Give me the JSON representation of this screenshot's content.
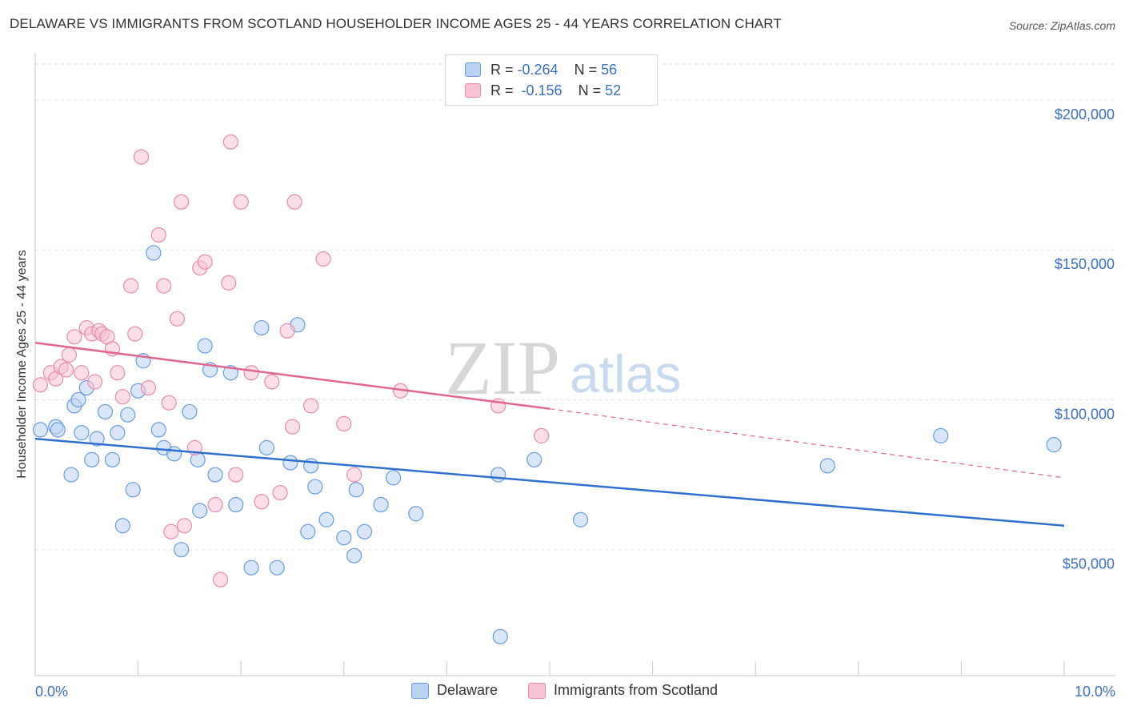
{
  "title": "DELAWARE VS IMMIGRANTS FROM SCOTLAND HOUSEHOLDER INCOME AGES 25 - 44 YEARS CORRELATION CHART",
  "source": "Source: ZipAtlas.com",
  "watermark": {
    "zip": "ZIP",
    "atlas": "atlas"
  },
  "legend": {
    "r_label": "R =",
    "n_label": "N =",
    "rows": [
      {
        "r": "-0.264",
        "n": "56"
      },
      {
        "r": "-0.156",
        "n": "52"
      }
    ]
  },
  "chart_data": {
    "type": "scatter",
    "xlabel": "",
    "ylabel": "Householder Income Ages 25 - 44 years",
    "xlim": [
      0,
      10
    ],
    "ylim": [
      8000,
      212000
    ],
    "x_tick_labels": [
      "0.0%",
      "10.0%"
    ],
    "y_ticks": [
      50000,
      100000,
      150000,
      200000
    ],
    "y_tick_labels": [
      "$50,000",
      "$100,000",
      "$150,000",
      "$200,000"
    ],
    "grid": true,
    "series": [
      {
        "name": "Delaware",
        "color": "#6a9be0",
        "fill": "#b9d1f3",
        "trend": {
          "x0": 0,
          "y0": 87000,
          "x1": 10,
          "y1": 58000
        },
        "points": [
          [
            0.05,
            90000
          ],
          [
            0.2,
            91000
          ],
          [
            0.22,
            90000
          ],
          [
            0.35,
            75000
          ],
          [
            0.38,
            98000
          ],
          [
            0.42,
            100000
          ],
          [
            0.45,
            89000
          ],
          [
            0.5,
            104000
          ],
          [
            0.55,
            80000
          ],
          [
            0.6,
            87000
          ],
          [
            0.68,
            96000
          ],
          [
            0.75,
            80000
          ],
          [
            0.8,
            89000
          ],
          [
            0.85,
            58000
          ],
          [
            0.9,
            95000
          ],
          [
            0.95,
            70000
          ],
          [
            1.0,
            103000
          ],
          [
            1.05,
            113000
          ],
          [
            1.15,
            149000
          ],
          [
            1.2,
            90000
          ],
          [
            1.25,
            84000
          ],
          [
            1.35,
            82000
          ],
          [
            1.42,
            50000
          ],
          [
            1.5,
            96000
          ],
          [
            1.58,
            80000
          ],
          [
            1.6,
            63000
          ],
          [
            1.65,
            118000
          ],
          [
            1.7,
            110000
          ],
          [
            1.75,
            75000
          ],
          [
            1.9,
            109000
          ],
          [
            1.95,
            65000
          ],
          [
            2.1,
            44000
          ],
          [
            2.2,
            124000
          ],
          [
            2.25,
            84000
          ],
          [
            2.35,
            44000
          ],
          [
            2.48,
            79000
          ],
          [
            2.55,
            125000
          ],
          [
            2.65,
            56000
          ],
          [
            2.68,
            78000
          ],
          [
            2.72,
            71000
          ],
          [
            2.83,
            60000
          ],
          [
            3.0,
            54000
          ],
          [
            3.1,
            48000
          ],
          [
            3.12,
            70000
          ],
          [
            3.2,
            56000
          ],
          [
            3.36,
            65000
          ],
          [
            3.48,
            74000
          ],
          [
            3.7,
            62000
          ],
          [
            4.5,
            75000
          ],
          [
            4.52,
            21000
          ],
          [
            4.85,
            80000
          ],
          [
            5.3,
            60000
          ],
          [
            7.7,
            78000
          ],
          [
            8.8,
            88000
          ],
          [
            9.9,
            85000
          ]
        ]
      },
      {
        "name": "Immigrants from Scotland",
        "color": "#e88ca8",
        "fill": "#f7c3d3",
        "trend": {
          "x0": 0,
          "y0": 119000,
          "x1": 5,
          "y1": 97000,
          "x_dash_end": 10,
          "y_dash_end": 74000
        },
        "points": [
          [
            0.05,
            105000
          ],
          [
            0.15,
            109000
          ],
          [
            0.2,
            107000
          ],
          [
            0.25,
            111000
          ],
          [
            0.3,
            110000
          ],
          [
            0.33,
            115000
          ],
          [
            0.38,
            121000
          ],
          [
            0.45,
            109000
          ],
          [
            0.5,
            124000
          ],
          [
            0.55,
            122000
          ],
          [
            0.58,
            106000
          ],
          [
            0.62,
            123000
          ],
          [
            0.65,
            122000
          ],
          [
            0.7,
            121000
          ],
          [
            0.75,
            117000
          ],
          [
            0.8,
            109000
          ],
          [
            0.85,
            101000
          ],
          [
            0.93,
            138000
          ],
          [
            0.97,
            122000
          ],
          [
            1.03,
            181000
          ],
          [
            1.1,
            104000
          ],
          [
            1.2,
            155000
          ],
          [
            1.25,
            138000
          ],
          [
            1.3,
            99000
          ],
          [
            1.32,
            56000
          ],
          [
            1.38,
            127000
          ],
          [
            1.42,
            166000
          ],
          [
            1.45,
            58000
          ],
          [
            1.55,
            84000
          ],
          [
            1.6,
            144000
          ],
          [
            1.65,
            146000
          ],
          [
            1.75,
            65000
          ],
          [
            1.8,
            40000
          ],
          [
            1.88,
            139000
          ],
          [
            1.9,
            186000
          ],
          [
            1.95,
            75000
          ],
          [
            2.0,
            166000
          ],
          [
            2.1,
            109000
          ],
          [
            2.2,
            66000
          ],
          [
            2.3,
            106000
          ],
          [
            2.38,
            69000
          ],
          [
            2.45,
            123000
          ],
          [
            2.5,
            91000
          ],
          [
            2.52,
            166000
          ],
          [
            2.68,
            98000
          ],
          [
            2.8,
            147000
          ],
          [
            3.0,
            92000
          ],
          [
            3.1,
            75000
          ],
          [
            3.55,
            103000
          ],
          [
            4.5,
            98000
          ],
          [
            4.92,
            88000
          ]
        ]
      }
    ]
  }
}
